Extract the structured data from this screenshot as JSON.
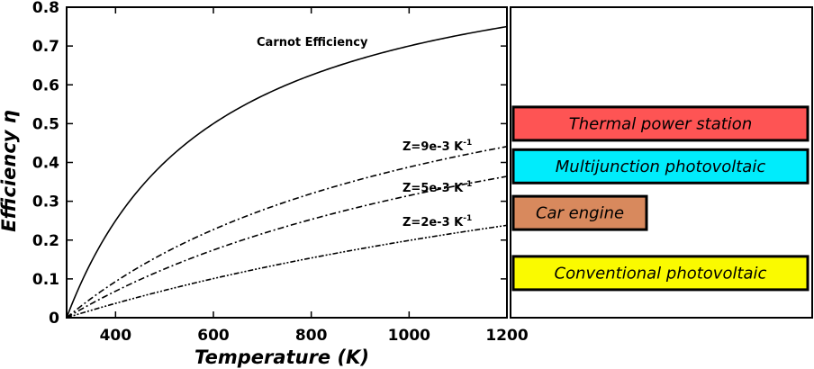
{
  "chart_data": [
    {
      "type": "line",
      "xlabel": "Temperature (K)",
      "ylabel": "Efficiency η",
      "xlim": [
        300,
        1200
      ],
      "ylim": [
        0,
        0.8
      ],
      "cold_side_temperature_K": 300,
      "xticks": [
        400,
        600,
        800,
        1000,
        1200
      ],
      "yticks": [
        0,
        0.1,
        0.2,
        0.3,
        0.4,
        0.5,
        0.6,
        0.7,
        0.8
      ],
      "series": [
        {
          "key": "carnot",
          "name": "Carnot Efficiency",
          "style": "solid",
          "values": [
            0,
            0.5,
            0.667,
            0.75
          ],
          "x": [
            300,
            600,
            900,
            1200
          ]
        },
        {
          "key": "z9",
          "name": "Z=9e-3 K",
          "superscript": "-1",
          "style": "dashdot",
          "ZT_coefficient": 0.009,
          "values": [
            0,
            0.23,
            0.35,
            0.44
          ],
          "x": [
            300,
            600,
            900,
            1200
          ]
        },
        {
          "key": "z5",
          "name": "Z=5e-3 K",
          "superscript": "-1",
          "style": "dashdot",
          "ZT_coefficient": 0.005,
          "values": [
            0,
            0.17,
            0.26,
            0.335
          ],
          "x": [
            300,
            600,
            900,
            1200
          ]
        },
        {
          "key": "z2",
          "name": "Z=2e-3 K",
          "superscript": "-1",
          "style": "dashdotdot",
          "ZT_coefficient": 0.002,
          "values": [
            0,
            0.1,
            0.17,
            0.24
          ],
          "x": [
            300,
            600,
            900,
            1200
          ]
        }
      ]
    },
    {
      "type": "bar",
      "orientation": "horizontal",
      "ylim": [
        0,
        0.8
      ],
      "series": [
        {
          "label": "Thermal power station",
          "value": 0.5,
          "color": "#fe5454"
        },
        {
          "label": "Multijunction photovoltaic",
          "value": 0.39,
          "color": "#00ecfc"
        },
        {
          "label": "Car engine",
          "value": 0.27,
          "color": "#d8895d"
        },
        {
          "label": "Conventional photovoltaic",
          "value": 0.115,
          "color": "#fafa00"
        }
      ]
    }
  ]
}
